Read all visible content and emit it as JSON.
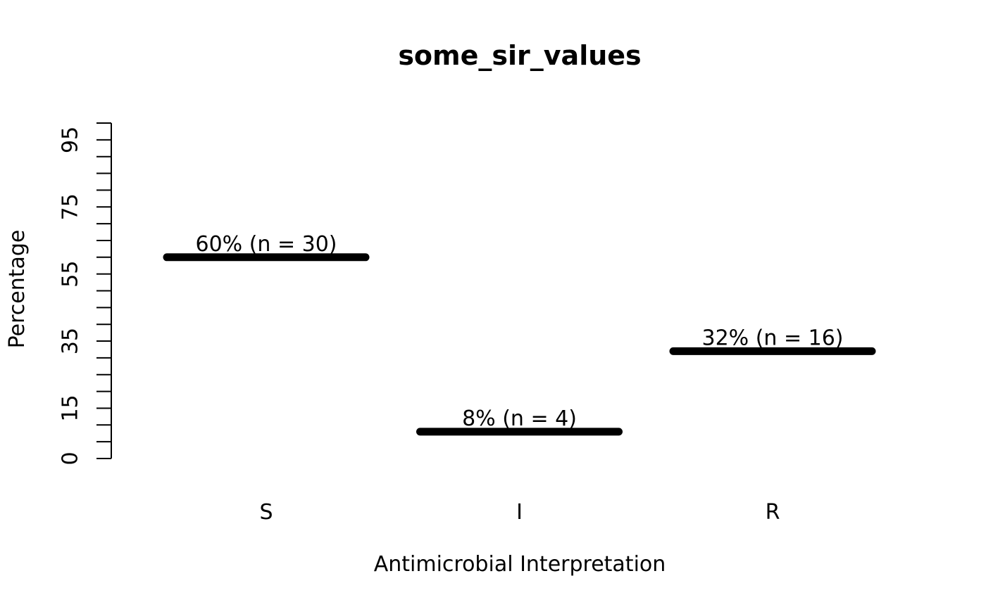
{
  "chart_data": {
    "type": "bar",
    "title": "some_sir_values",
    "xlabel": "Antimicrobial Interpretation",
    "ylabel": "Percentage",
    "categories": [
      "S",
      "I",
      "R"
    ],
    "values": [
      60,
      8,
      32
    ],
    "counts": [
      30,
      4,
      16
    ],
    "bar_labels": [
      "60% (n = 30)",
      "8% (n = 4)",
      "32% (n = 16)"
    ],
    "ylim": [
      0,
      100
    ],
    "y_minor_tick_step": 5,
    "y_labeled_ticks": [
      0,
      15,
      35,
      55,
      75,
      95
    ],
    "grid": false,
    "legend_position": "none",
    "colors": {
      "bar": "#000000",
      "axis": "#000000",
      "text": "#000000",
      "background": "#ffffff"
    }
  }
}
